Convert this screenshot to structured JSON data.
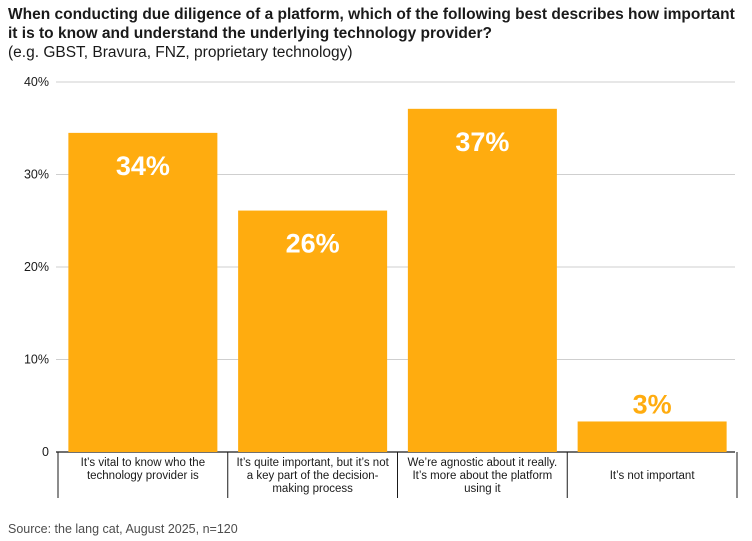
{
  "header": {
    "title": "When conducting due diligence of a platform, which of the following best describes how important it is to know and understand the underlying technology provider?",
    "subtitle": "(e.g. GBST, Bravura, FNZ, proprietary technology)"
  },
  "chart_data": {
    "type": "bar",
    "categories": [
      "It’s vital to know who the technology provider is",
      "It’s quite important, but it’s not a key part of the decision-making process",
      "We’re agnostic about it really. It’s more about the platform using it",
      "It’s not important"
    ],
    "values": [
      34.5,
      26.1,
      37.1,
      3.3
    ],
    "data_labels": [
      "34%",
      "26%",
      "37%",
      "3%"
    ],
    "y_ticks": [
      "0",
      "10%",
      "20%",
      "30%",
      "40%"
    ],
    "ylim": [
      0,
      40
    ],
    "grid": true,
    "bar_color": "#FFAC0F",
    "label_color": "#ffffff",
    "small_label_color": "#FFAC0F"
  },
  "footer": {
    "source": "Source: the lang cat, August 2025, n=120"
  }
}
